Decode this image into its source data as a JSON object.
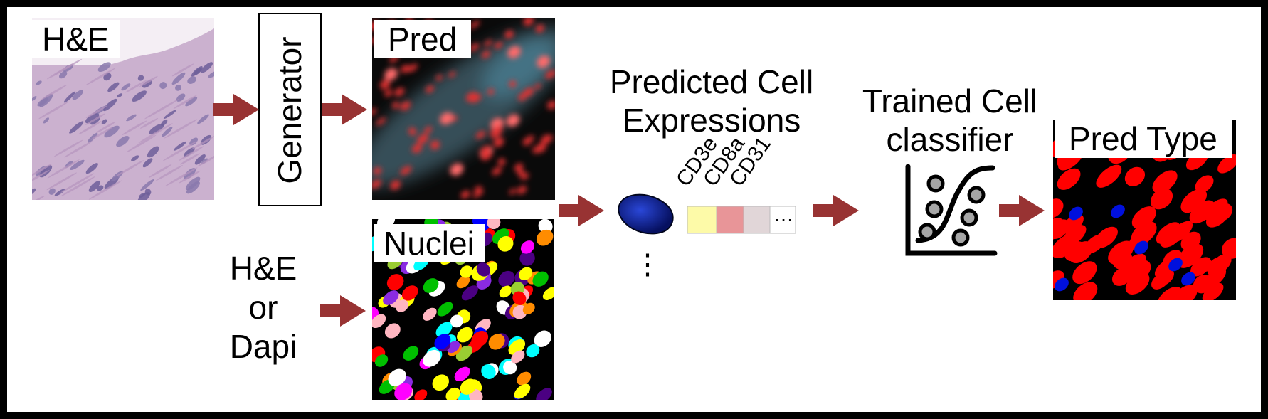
{
  "he_image": {
    "label": "H&E"
  },
  "generator": {
    "label": "Generator"
  },
  "pred_image": {
    "label": "Pred"
  },
  "nuclei_image": {
    "label": "Nuclei"
  },
  "nuclei_input": {
    "lines": [
      "H&E",
      "or",
      "Dapi"
    ]
  },
  "expressions": {
    "title_lines": [
      "Predicted Cell",
      "Expressions"
    ],
    "markers": [
      "CD3e",
      "CD8a",
      "CD31"
    ],
    "marker_colors": [
      "#fdfaa8",
      "#e89598",
      "#e1d6d8"
    ],
    "more": "···",
    "vertical_more": "⋮"
  },
  "classifier": {
    "title_lines": [
      "Trained Cell",
      "classifier"
    ]
  },
  "pred_type_image": {
    "label": "Pred Type"
  },
  "colors": {
    "arrow": "#983333",
    "tissue": "#cbb1cf",
    "tumor_red": "#ff0000",
    "immune_blue": "#0010dd",
    "frame": "#000000"
  }
}
